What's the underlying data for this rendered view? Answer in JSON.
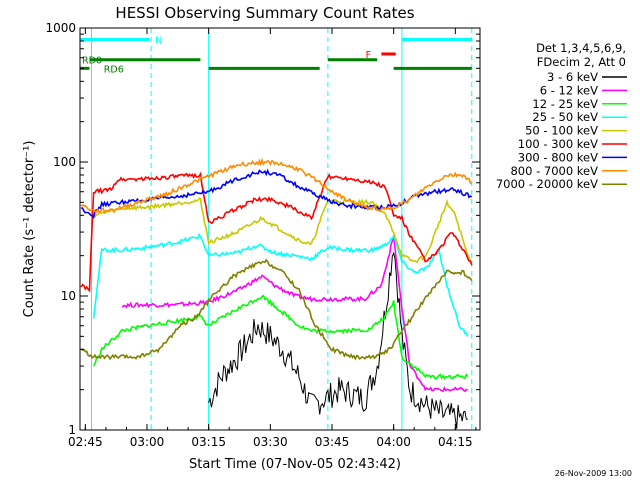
{
  "colors": {
    "ch1": "#000000",
    "ch2": "#ff00ff",
    "ch3": "#00ff00",
    "ch4": "#00ffff",
    "ch5": "#c8c800",
    "ch6": "#ff0000",
    "ch7": "#0000ff",
    "ch8": "#ff8c00",
    "ch9": "#808000",
    "rd": "#008000",
    "night": "#00ffff",
    "flare": "#ff0000"
  },
  "chart_data": {
    "type": "line",
    "title": "HESSI Observing Summary Count Rates",
    "xlabel": "Start Time (07-Nov-05 02:43:42)",
    "ylabel": "Count Rate (s⁻¹ detector⁻¹)",
    "timestamp": "26-Nov-2009 13:00",
    "y_scale": "log",
    "ylim": [
      1,
      1000
    ],
    "xlim": [
      "02:43:42",
      "04:21:00"
    ],
    "x_ticks": [
      "02:45",
      "03:00",
      "03:15",
      "03:30",
      "03:45",
      "04:00",
      "04:15"
    ],
    "y_ticks": [
      "1",
      "10",
      "100",
      "1000"
    ],
    "legend_header": [
      "Det 1,3,4,5,6,9,",
      "FDecim 2, Att 0"
    ],
    "legend_position": "right",
    "series": [
      {
        "name": "3 - 6 keV",
        "color": "#000000",
        "points": [
          [
            "03:15",
            1.6
          ],
          [
            "03:18",
            2.5
          ],
          [
            "03:22",
            3.5
          ],
          [
            "03:27",
            6
          ],
          [
            "03:30",
            5
          ],
          [
            "03:33",
            4
          ],
          [
            "03:37",
            2.5
          ],
          [
            "03:40",
            1.5
          ],
          [
            "03:47",
            2
          ],
          [
            "03:53",
            1.7
          ],
          [
            "03:56",
            3
          ],
          [
            "03:58",
            8
          ],
          [
            "04:00",
            25
          ],
          [
            "04:02",
            5
          ],
          [
            "04:04",
            2
          ],
          [
            "04:08",
            1.5
          ],
          [
            "04:12",
            1.3
          ],
          [
            "04:18",
            1.2
          ]
        ]
      },
      {
        "name": "6 - 12 keV",
        "color": "#ff00ff",
        "points": [
          [
            "02:54",
            8.5
          ],
          [
            "03:00",
            8.6
          ],
          [
            "03:07",
            8.6
          ],
          [
            "03:12",
            8.8
          ],
          [
            "03:15",
            9
          ],
          [
            "03:22",
            11
          ],
          [
            "03:28",
            14
          ],
          [
            "03:31",
            12
          ],
          [
            "03:36",
            10
          ],
          [
            "03:40",
            9.5
          ],
          [
            "03:47",
            9.5
          ],
          [
            "03:53",
            9.5
          ],
          [
            "03:57",
            12
          ],
          [
            "04:00",
            28
          ],
          [
            "04:02",
            8
          ],
          [
            "04:04",
            3
          ],
          [
            "04:08",
            2
          ],
          [
            "04:12",
            2
          ],
          [
            "04:18",
            2
          ]
        ]
      },
      {
        "name": "12 - 25 keV",
        "color": "#00ff00",
        "points": [
          [
            "02:47",
            3
          ],
          [
            "02:49",
            4
          ],
          [
            "02:54",
            5.5
          ],
          [
            "03:00",
            6
          ],
          [
            "03:07",
            6.5
          ],
          [
            "03:13",
            7
          ],
          [
            "03:15",
            6
          ],
          [
            "03:22",
            8
          ],
          [
            "03:28",
            10
          ],
          [
            "03:32",
            8
          ],
          [
            "03:37",
            6
          ],
          [
            "03:40",
            5.5
          ],
          [
            "03:47",
            5.5
          ],
          [
            "03:54",
            5.6
          ],
          [
            "03:58",
            7
          ],
          [
            "04:00",
            9
          ],
          [
            "04:02",
            3.5
          ],
          [
            "04:08",
            2.5
          ],
          [
            "04:12",
            2.5
          ],
          [
            "04:18",
            2.5
          ]
        ]
      },
      {
        "name": "25 - 50 keV",
        "color": "#00ffff",
        "points": [
          [
            "02:47",
            7
          ],
          [
            "02:49",
            22
          ],
          [
            "02:54",
            22
          ],
          [
            "03:00",
            23
          ],
          [
            "03:07",
            25
          ],
          [
            "03:13",
            28
          ],
          [
            "03:15",
            20
          ],
          [
            "03:22",
            21
          ],
          [
            "03:27",
            24
          ],
          [
            "03:31",
            21
          ],
          [
            "03:36",
            20
          ],
          [
            "03:40",
            19
          ],
          [
            "03:44",
            23
          ],
          [
            "03:50",
            22
          ],
          [
            "03:55",
            22
          ],
          [
            "03:58",
            24
          ],
          [
            "04:00",
            28
          ],
          [
            "04:02",
            18
          ],
          [
            "04:05",
            15
          ],
          [
            "04:08",
            16
          ],
          [
            "04:11",
            22
          ],
          [
            "04:13",
            12
          ],
          [
            "04:16",
            6
          ],
          [
            "04:18",
            5
          ]
        ]
      },
      {
        "name": "50 - 100 keV",
        "color": "#c8c800",
        "points": [
          [
            "02:47",
            40
          ],
          [
            "02:54",
            45
          ],
          [
            "03:00",
            46
          ],
          [
            "03:07",
            49
          ],
          [
            "03:13",
            52
          ],
          [
            "03:15",
            25
          ],
          [
            "03:22",
            30
          ],
          [
            "03:28",
            38
          ],
          [
            "03:32",
            32
          ],
          [
            "03:37",
            26
          ],
          [
            "03:40",
            24
          ],
          [
            "03:44",
            52
          ],
          [
            "03:50",
            50
          ],
          [
            "03:55",
            50
          ],
          [
            "03:58",
            40
          ],
          [
            "04:00",
            30
          ],
          [
            "04:02",
            20
          ],
          [
            "04:05",
            18
          ],
          [
            "04:08",
            20
          ],
          [
            "04:11",
            35
          ],
          [
            "04:13",
            50
          ],
          [
            "04:15",
            40
          ],
          [
            "04:18",
            20
          ],
          [
            "04:19",
            18
          ]
        ]
      },
      {
        "name": "100 - 300 keV",
        "color": "#ff0000",
        "points": [
          [
            "02:44",
            12
          ],
          [
            "02:46",
            11
          ],
          [
            "02:47",
            60
          ],
          [
            "02:51",
            62
          ],
          [
            "02:53",
            74
          ],
          [
            "03:00",
            75
          ],
          [
            "03:07",
            78
          ],
          [
            "03:13",
            80
          ],
          [
            "03:15",
            35
          ],
          [
            "03:20",
            42
          ],
          [
            "03:26",
            52
          ],
          [
            "03:30",
            53
          ],
          [
            "03:35",
            46
          ],
          [
            "03:40",
            38
          ],
          [
            "03:44",
            78
          ],
          [
            "03:50",
            75
          ],
          [
            "03:55",
            70
          ],
          [
            "03:58",
            65
          ],
          [
            "04:00",
            40
          ],
          [
            "04:02",
            38
          ],
          [
            "04:04",
            28
          ],
          [
            "04:08",
            18
          ],
          [
            "04:11",
            22
          ],
          [
            "04:14",
            30
          ],
          [
            "04:17",
            22
          ],
          [
            "04:19",
            17
          ]
        ]
      },
      {
        "name": "300 - 800 keV",
        "color": "#0000ff",
        "points": [
          [
            "02:44",
            45
          ],
          [
            "02:47",
            40
          ],
          [
            "02:49",
            48
          ],
          [
            "02:53",
            50
          ],
          [
            "03:00",
            52
          ],
          [
            "03:07",
            55
          ],
          [
            "03:15",
            60
          ],
          [
            "03:22",
            75
          ],
          [
            "03:28",
            85
          ],
          [
            "03:32",
            80
          ],
          [
            "03:37",
            65
          ],
          [
            "03:42",
            55
          ],
          [
            "03:47",
            48
          ],
          [
            "03:53",
            46
          ],
          [
            "03:57",
            46
          ],
          [
            "04:01",
            48
          ],
          [
            "04:05",
            55
          ],
          [
            "04:10",
            60
          ],
          [
            "04:15",
            62
          ],
          [
            "04:19",
            55
          ]
        ]
      },
      {
        "name": "800 - 7000 keV",
        "color": "#ff8c00",
        "points": [
          [
            "02:44",
            48
          ],
          [
            "02:47",
            43
          ],
          [
            "02:52",
            44
          ],
          [
            "02:58",
            50
          ],
          [
            "03:05",
            58
          ],
          [
            "03:11",
            70
          ],
          [
            "03:17",
            83
          ],
          [
            "03:22",
            95
          ],
          [
            "03:28",
            100
          ],
          [
            "03:32",
            98
          ],
          [
            "03:37",
            88
          ],
          [
            "03:42",
            70
          ],
          [
            "03:47",
            55
          ],
          [
            "03:53",
            46
          ],
          [
            "03:58",
            44
          ],
          [
            "04:03",
            50
          ],
          [
            "04:08",
            65
          ],
          [
            "04:13",
            80
          ],
          [
            "04:17",
            80
          ],
          [
            "04:19",
            70
          ]
        ]
      },
      {
        "name": "7000 - 20000 keV",
        "color": "#808000",
        "points": [
          [
            "02:44",
            4
          ],
          [
            "02:47",
            3.5
          ],
          [
            "02:53",
            3.5
          ],
          [
            "02:58",
            3.5
          ],
          [
            "03:03",
            4
          ],
          [
            "03:08",
            6
          ],
          [
            "03:12",
            7
          ],
          [
            "03:16",
            10
          ],
          [
            "03:21",
            14
          ],
          [
            "03:26",
            17
          ],
          [
            "03:29",
            18
          ],
          [
            "03:33",
            15
          ],
          [
            "03:37",
            11
          ],
          [
            "03:41",
            6
          ],
          [
            "03:45",
            4
          ],
          [
            "03:50",
            3.5
          ],
          [
            "03:55",
            3.5
          ],
          [
            "03:59",
            4
          ],
          [
            "04:03",
            6
          ],
          [
            "04:08",
            10
          ],
          [
            "04:13",
            15
          ],
          [
            "04:17",
            15
          ],
          [
            "04:19",
            13
          ]
        ]
      }
    ],
    "flags": [
      {
        "name": "N",
        "color": "#00ffff",
        "y_value": 820,
        "segments": [
          [
            "02:43:42",
            "03:00:30"
          ],
          [
            "04:02",
            "04:19"
          ]
        ]
      },
      {
        "name": "F",
        "color": "#ff0000",
        "y_value": 640,
        "segments": [
          [
            "03:57",
            "04:00:30"
          ]
        ]
      },
      {
        "name": "RD0",
        "color": "#008000",
        "y_value": 580,
        "segments": [
          [
            "02:46",
            "03:13"
          ],
          [
            "03:44",
            "03:56"
          ]
        ]
      },
      {
        "name": "RD6",
        "color": "#008000",
        "y_value": 500,
        "segments": [
          [
            "02:43:42",
            "02:46"
          ],
          [
            "03:15",
            "03:42"
          ],
          [
            "04:00",
            "04:19"
          ]
        ]
      }
    ],
    "night_boundaries": [
      "02:46:30",
      "03:01:00",
      "03:15:00",
      "03:44:00",
      "04:02:00",
      "04:19:00"
    ]
  }
}
